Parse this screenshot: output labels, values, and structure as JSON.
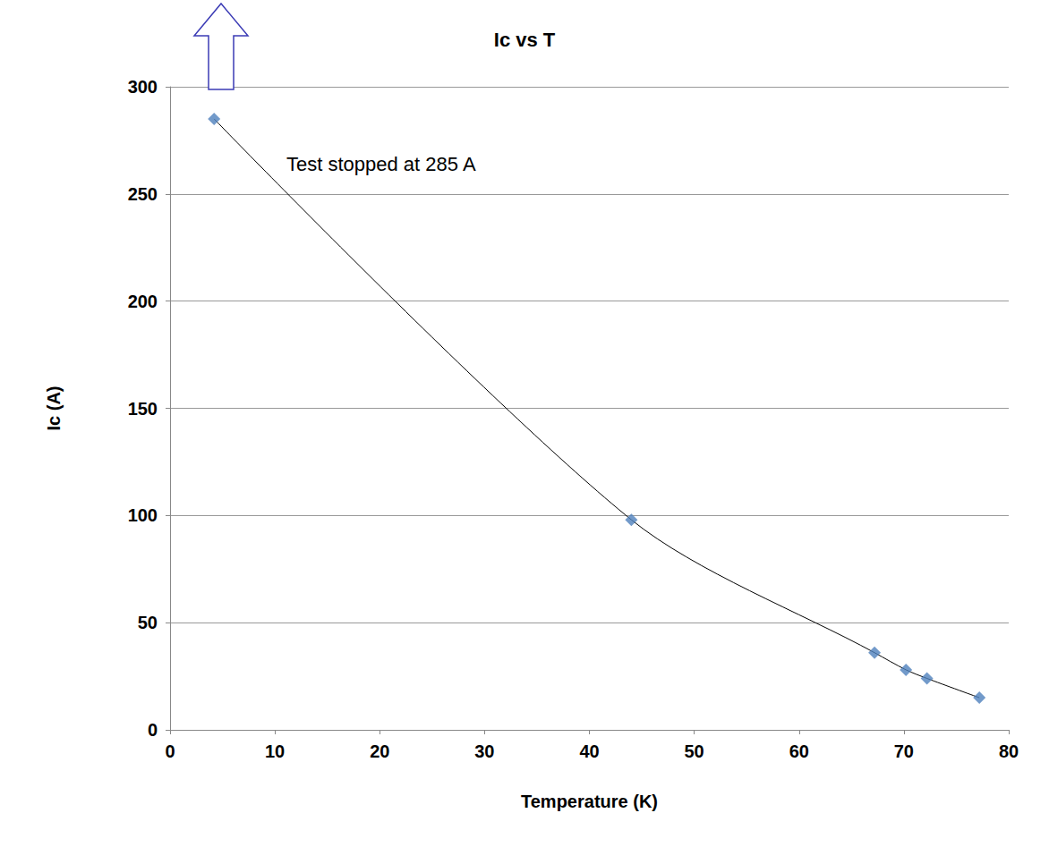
{
  "chart_data": {
    "type": "scatter",
    "title": "Ic vs T",
    "x_label": "Temperature (K)",
    "y_label": "Ic (A)",
    "annotation": "Test stopped at 285 A",
    "x": [
      4.2,
      44,
      67.2,
      70.2,
      72.2,
      77.2
    ],
    "values": [
      285,
      98,
      36,
      28,
      24,
      15
    ],
    "color": "#4f81bd",
    "marker": "diamond",
    "line_style": "solid",
    "xlim": [
      0,
      80
    ],
    "xticks": [
      0,
      10,
      20,
      30,
      40,
      50,
      60,
      70,
      80
    ],
    "ylim": [
      0,
      300
    ],
    "yticks": [
      0,
      50,
      100,
      150,
      200,
      250,
      300
    ],
    "grid": true
  }
}
